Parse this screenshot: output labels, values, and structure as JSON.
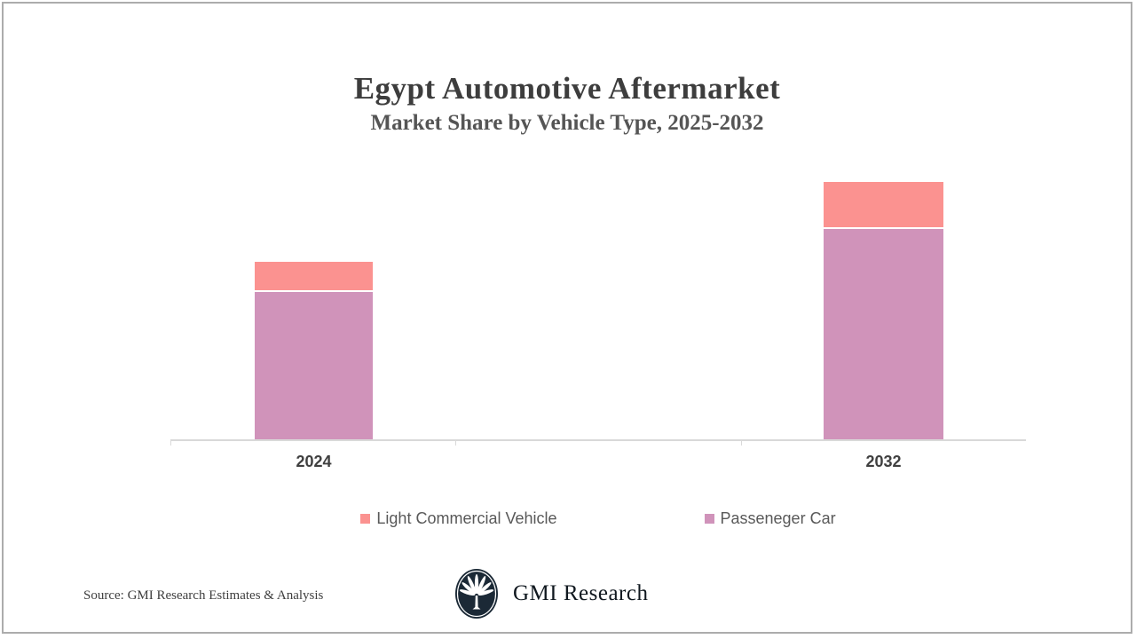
{
  "header": {
    "title": "Egypt Automotive Aftermarket",
    "subtitle": "Market Share by Vehicle Type, 2025-2032"
  },
  "chart_data": {
    "type": "bar",
    "stacked": true,
    "title": "Egypt Automotive Aftermarket",
    "subtitle": "Market Share by Vehicle Type, 2025-2032",
    "categories": [
      "2024",
      "2032"
    ],
    "series": [
      {
        "name": "Passeneger Car",
        "color": "#D093BA",
        "values": [
          83.8,
          119.7
        ]
      },
      {
        "name": "Light Commercial Vehicle",
        "color": "#FB9290",
        "values": [
          16.2,
          25.8
        ]
      }
    ],
    "value_units": "relative index (2024 total = 100), estimated from bar heights; no y-axis shown",
    "xlabel": "",
    "ylabel": "",
    "gridlines": false,
    "y_axis_visible": false,
    "axis_color": "#D9D9D9",
    "legend_position": "bottom"
  },
  "legend": {
    "items": [
      {
        "label": "Light Commercial Vehicle",
        "color": "#FB9290"
      },
      {
        "label": "Passeneger Car",
        "color": "#D093BA"
      }
    ]
  },
  "footer": {
    "source": "Source: GMI Research Estimates & Analysis",
    "brand": "GMI Research",
    "logo_color": "#1b2936"
  }
}
